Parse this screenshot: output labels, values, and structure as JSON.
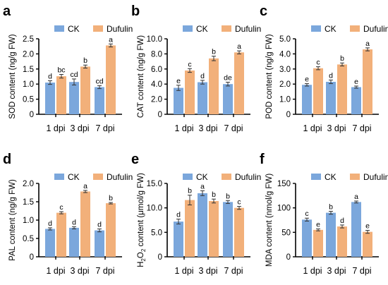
{
  "colors": {
    "ck": "#7BA7DC",
    "dufulin": "#F2B07A"
  },
  "chart_data": [
    {
      "panel": "a",
      "type": "bar",
      "categories": [
        "1 dpi",
        "3 dpi",
        "7 dpi"
      ],
      "ylabel": "SOD content (ng/g FW)",
      "ylim": [
        0,
        2.5
      ],
      "yticks": [
        "0",
        "0.5",
        "1.0",
        "1.5",
        "2.0",
        "2.5"
      ],
      "legend": [
        "CK",
        "Dufulin"
      ],
      "series": [
        {
          "name": "CK",
          "values": [
            1.05,
            1.07,
            0.9
          ],
          "errors": [
            0.06,
            0.1,
            0.05
          ],
          "labels": [
            "d",
            "cd",
            "cd"
          ]
        },
        {
          "name": "Dufulin",
          "values": [
            1.26,
            1.58,
            2.28
          ],
          "errors": [
            0.06,
            0.05,
            0.05
          ],
          "labels": [
            "bc",
            "b",
            "a"
          ]
        }
      ]
    },
    {
      "panel": "b",
      "type": "bar",
      "categories": [
        "1 dpi",
        "3 dpi",
        "7 dpi"
      ],
      "ylabel": "CAT content (ng/g FW)",
      "ylim": [
        0,
        10
      ],
      "yticks": [
        "0",
        "2.0",
        "4.0",
        "6.0",
        "8.0",
        "10.0"
      ],
      "legend": [
        "CK",
        "Dufulin"
      ],
      "series": [
        {
          "name": "CK",
          "values": [
            3.5,
            4.25,
            4.0
          ],
          "errors": [
            0.35,
            0.25,
            0.25
          ],
          "labels": [
            "e",
            "d",
            "de"
          ]
        },
        {
          "name": "Dufulin",
          "values": [
            5.8,
            7.4,
            8.2
          ],
          "errors": [
            0.25,
            0.3,
            0.2
          ],
          "labels": [
            "c",
            "b",
            "a"
          ]
        }
      ]
    },
    {
      "panel": "c",
      "type": "bar",
      "categories": [
        "1 dpi",
        "3 dpi",
        "7 dpi"
      ],
      "ylabel": "POD content (ng/g FW)",
      "ylim": [
        0,
        5
      ],
      "yticks": [
        "0",
        "1.0",
        "2.0",
        "3.0",
        "4.0",
        "5.0"
      ],
      "legend": [
        "CK",
        "Dufulin"
      ],
      "series": [
        {
          "name": "CK",
          "values": [
            1.95,
            2.15,
            1.8
          ],
          "errors": [
            0.08,
            0.12,
            0.07
          ],
          "labels": [
            "e",
            "d",
            "e"
          ]
        },
        {
          "name": "Dufulin",
          "values": [
            3.05,
            3.3,
            4.3
          ],
          "errors": [
            0.1,
            0.1,
            0.1
          ],
          "labels": [
            "c",
            "b",
            "a"
          ]
        }
      ]
    },
    {
      "panel": "d",
      "type": "bar",
      "categories": [
        "1 dpi",
        "3 dpi",
        "7 dpi"
      ],
      "ylabel": "PAL content (ng/g FW)",
      "ylim": [
        0,
        2
      ],
      "yticks": [
        "0",
        "0.5",
        "1.0",
        "1.5",
        "2.0"
      ],
      "legend": [
        "CK",
        "Dufulin"
      ],
      "series": [
        {
          "name": "CK",
          "values": [
            0.76,
            0.79,
            0.72
          ],
          "errors": [
            0.03,
            0.03,
            0.04
          ],
          "labels": [
            "d",
            "d",
            "d"
          ]
        },
        {
          "name": "Dufulin",
          "values": [
            1.2,
            1.78,
            1.46
          ],
          "errors": [
            0.03,
            0.03,
            0.02
          ],
          "labels": [
            "c",
            "a",
            "b"
          ]
        }
      ]
    },
    {
      "panel": "e",
      "type": "bar",
      "categories": [
        "1 dpi",
        "3 dpi",
        "7 dpi"
      ],
      "ylabel": "H2O2 content (μmol/g FW)",
      "ylim": [
        0,
        15
      ],
      "yticks": [
        "0",
        "5.0",
        "10.0",
        "15.0"
      ],
      "legend": [
        "CK",
        "Dufulin"
      ],
      "series": [
        {
          "name": "CK",
          "values": [
            7.2,
            13.0,
            11.2
          ],
          "errors": [
            0.5,
            0.5,
            0.3
          ],
          "labels": [
            "d",
            "a",
            "b"
          ]
        },
        {
          "name": "Dufulin",
          "values": [
            11.6,
            11.4,
            10.0
          ],
          "errors": [
            1.0,
            0.4,
            0.3
          ],
          "labels": [
            "b",
            "b",
            "c"
          ]
        }
      ]
    },
    {
      "panel": "f",
      "type": "bar",
      "categories": [
        "1 dpi",
        "3 dpi",
        "7 dpi"
      ],
      "ylabel": "MDA content (nmol/g FW)",
      "ylim": [
        0,
        150
      ],
      "yticks": [
        "0",
        "50",
        "100",
        "150"
      ],
      "legend": [
        "CK",
        "Dufulin"
      ],
      "series": [
        {
          "name": "CK",
          "values": [
            76,
            90,
            112
          ],
          "errors": [
            3,
            3,
            2
          ],
          "labels": [
            "c",
            "b",
            "a"
          ]
        },
        {
          "name": "Dufulin",
          "values": [
            55,
            62,
            51
          ],
          "errors": [
            2,
            3,
            3
          ],
          "labels": [
            "e",
            "d",
            "e"
          ]
        }
      ]
    }
  ]
}
